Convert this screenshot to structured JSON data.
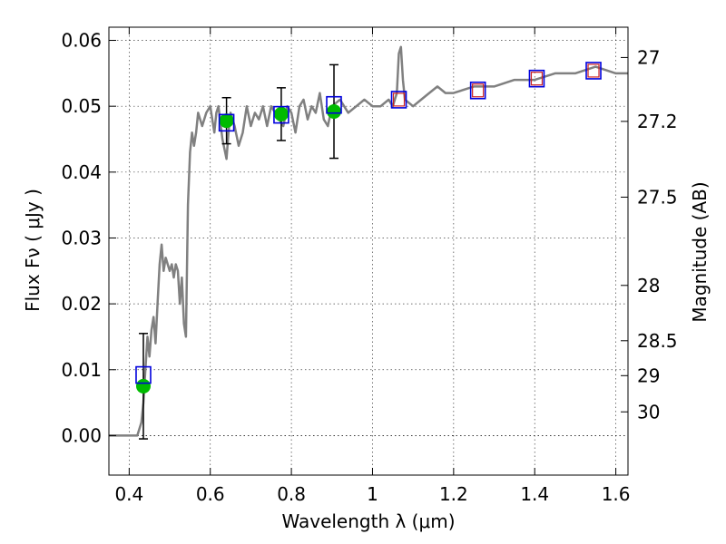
{
  "chart_data": {
    "type": "scatter",
    "xlabel": "Wavelength  λ (μm)",
    "ylabel": "Flux  Fν  ( μJy )",
    "ylabel_right": "Magnitude (AB)",
    "xlim": [
      0.35,
      1.63
    ],
    "ylim": [
      -0.006,
      0.062
    ],
    "xticks": [
      0.4,
      0.6,
      0.8,
      1.0,
      1.2,
      1.4,
      1.6
    ],
    "xtick_labels": [
      "0.4",
      "0.6",
      "0.8",
      "1",
      "1.2",
      "1.4",
      "1.6"
    ],
    "yticks": [
      0.0,
      0.01,
      0.02,
      0.03,
      0.04,
      0.05,
      0.06
    ],
    "ytick_labels": [
      "0.00",
      "0.01",
      "0.02",
      "0.03",
      "0.04",
      "0.05",
      "0.06"
    ],
    "right_axis_ticks": [
      {
        "label": "27",
        "flux": 0.0574
      },
      {
        "label": "27.2",
        "flux": 0.0477
      },
      {
        "label": "27.5",
        "flux": 0.0362
      },
      {
        "label": "28",
        "flux": 0.0228
      },
      {
        "label": "28.5",
        "flux": 0.0144
      },
      {
        "label": "29",
        "flux": 0.0091
      },
      {
        "label": "30",
        "flux": 0.0036
      }
    ],
    "grid": true,
    "series": [
      {
        "type": "line",
        "color": "#808080",
        "x": [
          0.35,
          0.41,
          0.42,
          0.43,
          0.435,
          0.44,
          0.445,
          0.45,
          0.455,
          0.46,
          0.465,
          0.47,
          0.475,
          0.48,
          0.485,
          0.49,
          0.5,
          0.505,
          0.51,
          0.515,
          0.52,
          0.525,
          0.53,
          0.535,
          0.54,
          0.545,
          0.55,
          0.555,
          0.56,
          0.565,
          0.57,
          0.58,
          0.59,
          0.6,
          0.61,
          0.615,
          0.62,
          0.63,
          0.64,
          0.645,
          0.65,
          0.66,
          0.67,
          0.68,
          0.69,
          0.7,
          0.71,
          0.72,
          0.73,
          0.74,
          0.75,
          0.76,
          0.77,
          0.78,
          0.79,
          0.8,
          0.81,
          0.82,
          0.83,
          0.84,
          0.85,
          0.86,
          0.87,
          0.88,
          0.89,
          0.9,
          0.92,
          0.94,
          0.96,
          0.98,
          1.0,
          1.02,
          1.04,
          1.05,
          1.06,
          1.065,
          1.07,
          1.075,
          1.08,
          1.1,
          1.12,
          1.14,
          1.16,
          1.18,
          1.2,
          1.25,
          1.3,
          1.35,
          1.4,
          1.45,
          1.5,
          1.55,
          1.6,
          1.63
        ],
        "values": [
          0.0,
          0.0,
          0.0,
          0.002,
          0.005,
          0.01,
          0.015,
          0.012,
          0.016,
          0.018,
          0.014,
          0.02,
          0.026,
          0.029,
          0.025,
          0.027,
          0.025,
          0.026,
          0.024,
          0.026,
          0.025,
          0.02,
          0.024,
          0.017,
          0.015,
          0.035,
          0.043,
          0.046,
          0.044,
          0.046,
          0.049,
          0.047,
          0.049,
          0.05,
          0.046,
          0.049,
          0.05,
          0.045,
          0.042,
          0.046,
          0.049,
          0.047,
          0.044,
          0.046,
          0.05,
          0.047,
          0.049,
          0.048,
          0.05,
          0.047,
          0.05,
          0.049,
          0.048,
          0.047,
          0.05,
          0.049,
          0.046,
          0.05,
          0.051,
          0.048,
          0.05,
          0.049,
          0.052,
          0.048,
          0.047,
          0.05,
          0.051,
          0.049,
          0.05,
          0.051,
          0.05,
          0.05,
          0.051,
          0.05,
          0.052,
          0.058,
          0.059,
          0.054,
          0.051,
          0.05,
          0.051,
          0.052,
          0.053,
          0.052,
          0.052,
          0.053,
          0.053,
          0.054,
          0.054,
          0.055,
          0.055,
          0.056,
          0.055,
          0.055
        ]
      },
      {
        "type": "errorbar",
        "color": "#000000",
        "x": [
          0.435,
          0.64,
          0.775,
          0.905
        ],
        "values": [
          0.0075,
          0.0478,
          0.0488,
          0.0492
        ],
        "yerr": [
          0.008,
          0.0035,
          0.004,
          0.0071
        ]
      },
      {
        "type": "scatter-circle",
        "color": "#00bb00",
        "x": [
          0.435,
          0.64,
          0.775,
          0.905
        ],
        "values": [
          0.0075,
          0.0478,
          0.0488,
          0.0492
        ]
      },
      {
        "type": "scatter-square",
        "color": "#0000dd",
        "x": [
          0.435,
          0.64,
          0.775,
          0.905,
          1.065,
          1.26,
          1.405,
          1.545
        ],
        "values": [
          0.0092,
          0.0475,
          0.0487,
          0.0502,
          0.051,
          0.0524,
          0.0542,
          0.0554
        ]
      },
      {
        "type": "scatter-square-small",
        "color": "#cc2222",
        "x": [
          1.065,
          1.26,
          1.405,
          1.545
        ],
        "values": [
          0.051,
          0.0524,
          0.0542,
          0.0554
        ]
      }
    ]
  }
}
